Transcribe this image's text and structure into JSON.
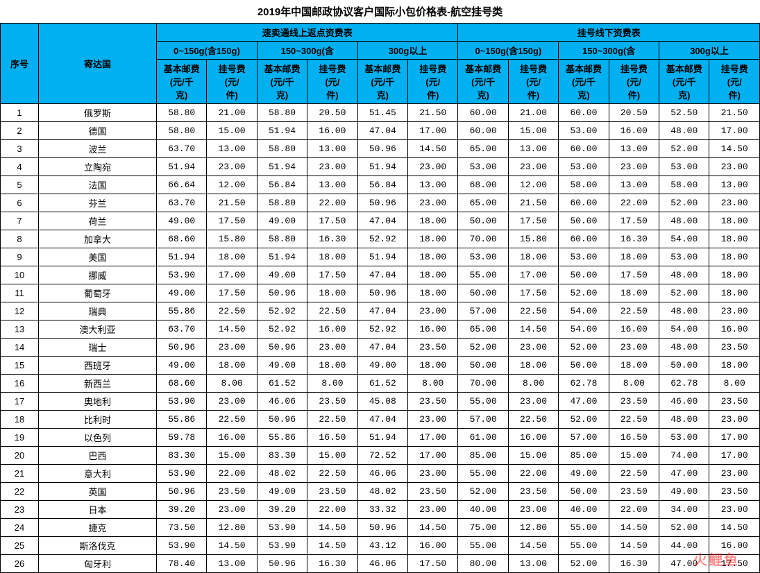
{
  "title": "2019年中国邮政协议客户国际小包价格表-航空挂号类",
  "colors": {
    "header_bg": "#00b0f0",
    "border": "#000000",
    "watermark": "rgba(255,0,0,0.45)"
  },
  "header": {
    "seq": "序号",
    "country": "寄达国",
    "group_a": "速卖通线上返点资费表",
    "group_b": "挂号线下资费表",
    "tier1": "0~150g(含150g)",
    "tier2": "150~300g(含",
    "tier3": "300g以上",
    "sub_base_l1": "基本邮费",
    "sub_base_l2": "(元/千",
    "sub_base_l3": "克)",
    "sub_reg_l1": "挂号费",
    "sub_reg_l2": "(元/",
    "sub_reg_l3": "件)"
  },
  "rows": [
    {
      "n": "1",
      "c": "俄罗斯",
      "v": [
        "58.80",
        "21.00",
        "58.80",
        "20.50",
        "51.45",
        "21.50",
        "60.00",
        "21.00",
        "60.00",
        "20.50",
        "52.50",
        "21.50"
      ]
    },
    {
      "n": "2",
      "c": "德国",
      "v": [
        "58.80",
        "15.00",
        "51.94",
        "16.00",
        "47.04",
        "17.00",
        "60.00",
        "15.00",
        "53.00",
        "16.00",
        "48.00",
        "17.00"
      ]
    },
    {
      "n": "3",
      "c": "波兰",
      "v": [
        "63.70",
        "13.00",
        "58.80",
        "13.00",
        "50.96",
        "14.50",
        "65.00",
        "13.00",
        "60.00",
        "13.00",
        "52.00",
        "14.50"
      ]
    },
    {
      "n": "4",
      "c": "立陶宛",
      "v": [
        "51.94",
        "23.00",
        "51.94",
        "23.00",
        "51.94",
        "23.00",
        "53.00",
        "23.00",
        "53.00",
        "23.00",
        "53.00",
        "23.00"
      ]
    },
    {
      "n": "5",
      "c": "法国",
      "v": [
        "66.64",
        "12.00",
        "56.84",
        "13.00",
        "56.84",
        "13.00",
        "68.00",
        "12.00",
        "58.00",
        "13.00",
        "58.00",
        "13.00"
      ]
    },
    {
      "n": "6",
      "c": "芬兰",
      "v": [
        "63.70",
        "21.50",
        "58.80",
        "22.00",
        "50.96",
        "23.00",
        "65.00",
        "21.50",
        "60.00",
        "22.00",
        "52.00",
        "23.00"
      ]
    },
    {
      "n": "7",
      "c": "荷兰",
      "v": [
        "49.00",
        "17.50",
        "49.00",
        "17.50",
        "47.04",
        "18.00",
        "50.00",
        "17.50",
        "50.00",
        "17.50",
        "48.00",
        "18.00"
      ]
    },
    {
      "n": "8",
      "c": "加拿大",
      "v": [
        "68.60",
        "15.80",
        "58.80",
        "16.30",
        "52.92",
        "18.00",
        "70.00",
        "15.80",
        "60.00",
        "16.30",
        "54.00",
        "18.00"
      ]
    },
    {
      "n": "9",
      "c": "美国",
      "v": [
        "51.94",
        "18.00",
        "51.94",
        "18.00",
        "51.94",
        "18.00",
        "53.00",
        "18.00",
        "53.00",
        "18.00",
        "53.00",
        "18.00"
      ]
    },
    {
      "n": "10",
      "c": "挪威",
      "v": [
        "53.90",
        "17.00",
        "49.00",
        "17.50",
        "47.04",
        "18.00",
        "55.00",
        "17.00",
        "50.00",
        "17.50",
        "48.00",
        "18.00"
      ]
    },
    {
      "n": "11",
      "c": "葡萄牙",
      "v": [
        "49.00",
        "17.50",
        "50.96",
        "18.00",
        "50.96",
        "18.00",
        "50.00",
        "17.50",
        "52.00",
        "18.00",
        "52.00",
        "18.00"
      ]
    },
    {
      "n": "12",
      "c": "瑞典",
      "v": [
        "55.86",
        "22.50",
        "52.92",
        "22.50",
        "47.04",
        "23.00",
        "57.00",
        "22.50",
        "54.00",
        "22.50",
        "48.00",
        "23.00"
      ]
    },
    {
      "n": "13",
      "c": "澳大利亚",
      "v": [
        "63.70",
        "14.50",
        "52.92",
        "16.00",
        "52.92",
        "16.00",
        "65.00",
        "14.50",
        "54.00",
        "16.00",
        "54.00",
        "16.00"
      ]
    },
    {
      "n": "14",
      "c": "瑞士",
      "v": [
        "50.96",
        "23.00",
        "50.96",
        "23.00",
        "47.04",
        "23.50",
        "52.00",
        "23.00",
        "52.00",
        "23.00",
        "48.00",
        "23.50"
      ]
    },
    {
      "n": "15",
      "c": "西班牙",
      "v": [
        "49.00",
        "18.00",
        "49.00",
        "18.00",
        "49.00",
        "18.00",
        "50.00",
        "18.00",
        "50.00",
        "18.00",
        "50.00",
        "18.00"
      ]
    },
    {
      "n": "16",
      "c": "新西兰",
      "v": [
        "68.60",
        "8.00",
        "61.52",
        "8.00",
        "61.52",
        "8.00",
        "70.00",
        "8.00",
        "62.78",
        "8.00",
        "62.78",
        "8.00"
      ]
    },
    {
      "n": "17",
      "c": "奥地利",
      "v": [
        "53.90",
        "23.00",
        "46.06",
        "23.50",
        "45.08",
        "23.50",
        "55.00",
        "23.00",
        "47.00",
        "23.50",
        "46.00",
        "23.50"
      ]
    },
    {
      "n": "18",
      "c": "比利时",
      "v": [
        "55.86",
        "22.50",
        "50.96",
        "22.50",
        "47.04",
        "23.00",
        "57.00",
        "22.50",
        "52.00",
        "22.50",
        "48.00",
        "23.00"
      ]
    },
    {
      "n": "19",
      "c": "以色列",
      "v": [
        "59.78",
        "16.00",
        "55.86",
        "16.50",
        "51.94",
        "17.00",
        "61.00",
        "16.00",
        "57.00",
        "16.50",
        "53.00",
        "17.00"
      ]
    },
    {
      "n": "20",
      "c": "巴西",
      "v": [
        "83.30",
        "15.00",
        "83.30",
        "15.00",
        "72.52",
        "17.00",
        "85.00",
        "15.00",
        "85.00",
        "15.00",
        "74.00",
        "17.00"
      ]
    },
    {
      "n": "21",
      "c": "意大利",
      "v": [
        "53.90",
        "22.00",
        "48.02",
        "22.50",
        "46.06",
        "23.00",
        "55.00",
        "22.00",
        "49.00",
        "22.50",
        "47.00",
        "23.00"
      ]
    },
    {
      "n": "22",
      "c": "英国",
      "v": [
        "50.96",
        "23.50",
        "49.00",
        "23.50",
        "48.02",
        "23.50",
        "52.00",
        "23.50",
        "50.00",
        "23.50",
        "49.00",
        "23.50"
      ]
    },
    {
      "n": "23",
      "c": "日本",
      "v": [
        "39.20",
        "23.00",
        "39.20",
        "22.00",
        "33.32",
        "23.00",
        "40.00",
        "23.00",
        "40.00",
        "22.00",
        "34.00",
        "23.00"
      ]
    },
    {
      "n": "24",
      "c": "捷克",
      "v": [
        "73.50",
        "12.80",
        "53.90",
        "14.50",
        "50.96",
        "14.50",
        "75.00",
        "12.80",
        "55.00",
        "14.50",
        "52.00",
        "14.50"
      ]
    },
    {
      "n": "25",
      "c": "斯洛伐克",
      "v": [
        "53.90",
        "14.50",
        "53.90",
        "14.50",
        "43.12",
        "16.00",
        "55.00",
        "14.50",
        "55.00",
        "14.50",
        "44.00",
        "16.00"
      ]
    },
    {
      "n": "26",
      "c": "匈牙利",
      "v": [
        "78.40",
        "13.00",
        "50.96",
        "16.30",
        "46.06",
        "17.50",
        "80.00",
        "13.00",
        "52.00",
        "16.30",
        "47.00",
        "17.50"
      ]
    }
  ],
  "watermark": "火鲤鱼"
}
